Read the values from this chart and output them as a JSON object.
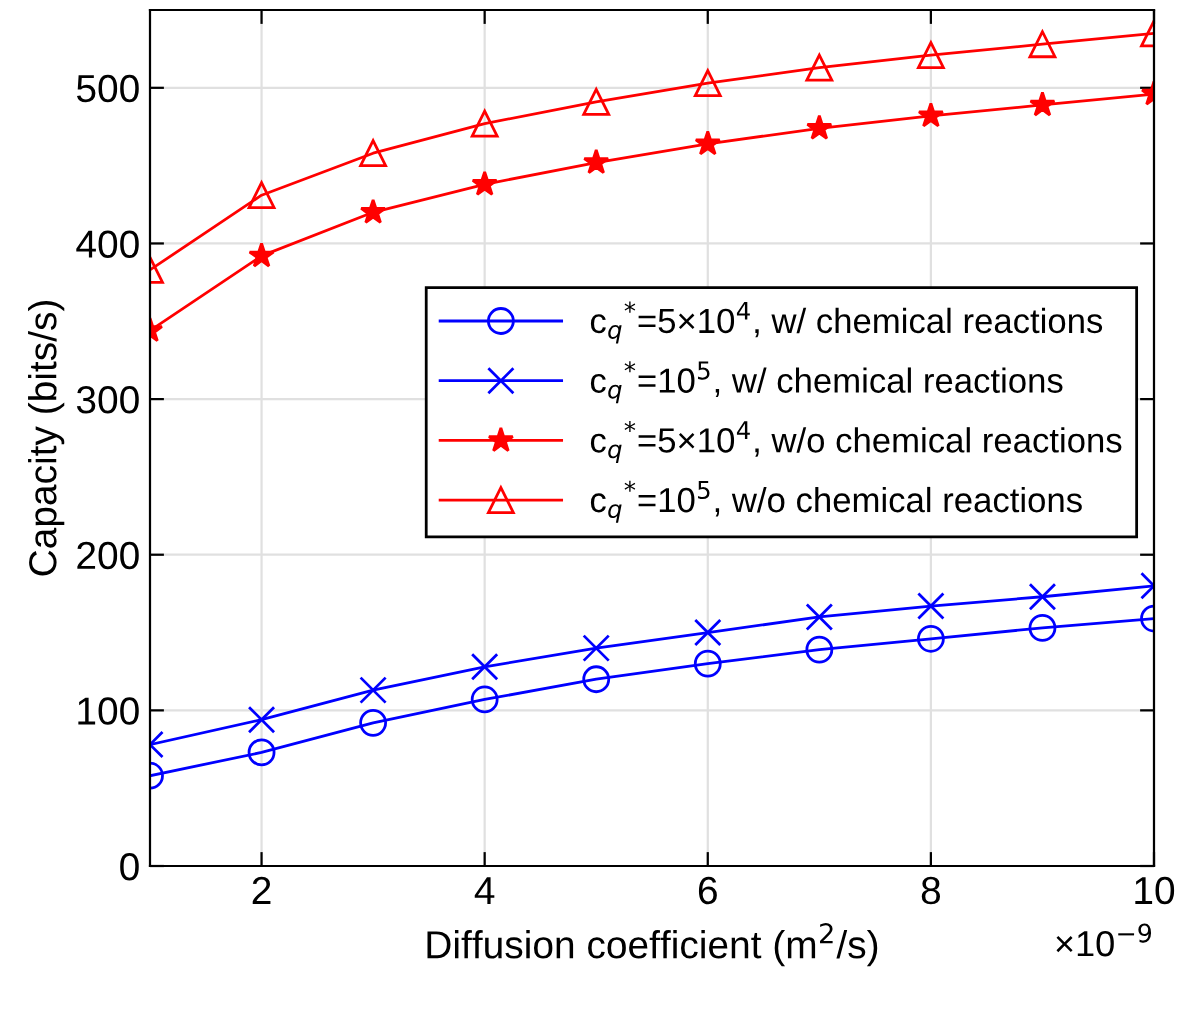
{
  "chart_data": {
    "type": "line",
    "xlabel": "Diffusion coefficient (m$^{2}$/s)",
    "ylabel": "Capacity (bits/s)",
    "x": [
      1,
      2,
      3,
      4,
      5,
      6,
      7,
      8,
      9,
      10
    ],
    "xlim": [
      1,
      10
    ],
    "xticks": [
      2,
      4,
      6,
      8,
      10
    ],
    "ylim": [
      0,
      550
    ],
    "yticks": [
      0,
      100,
      200,
      300,
      400,
      500
    ],
    "grid": true,
    "legend": "right",
    "line_style": "solid",
    "annotations": [
      "×10$^{−9}$"
    ],
    "series": [
      {
        "name": "c$_{q}$$^{*}$=5×10$^{4}$, w/ chemical reactions",
        "color": "#0000ff",
        "marker": "circle",
        "values": [
          58,
          73,
          92,
          107,
          120,
          130,
          139,
          146,
          153,
          159
        ]
      },
      {
        "name": "c$_{q}$$^{*}$=10$^{5}$, w/ chemical reactions",
        "color": "#0000ff",
        "marker": "cross",
        "values": [
          78,
          94,
          113,
          128,
          140,
          150,
          160,
          167,
          173,
          180
        ]
      },
      {
        "name": "c$_{q}$$^{*}$=5×10$^{4}$, w/o chemical reactions",
        "color": "#ff0000",
        "marker": "star",
        "values": [
          344,
          392,
          420,
          438,
          452,
          464,
          474,
          482,
          489,
          496
        ]
      },
      {
        "name": "c$_{q}$$^{*}$=10$^{5}$, w/o chemical reactions",
        "color": "#ff0000",
        "marker": "triangle",
        "values": [
          383,
          431,
          458,
          477,
          491,
          503,
          513,
          521,
          528,
          535
        ]
      }
    ]
  }
}
